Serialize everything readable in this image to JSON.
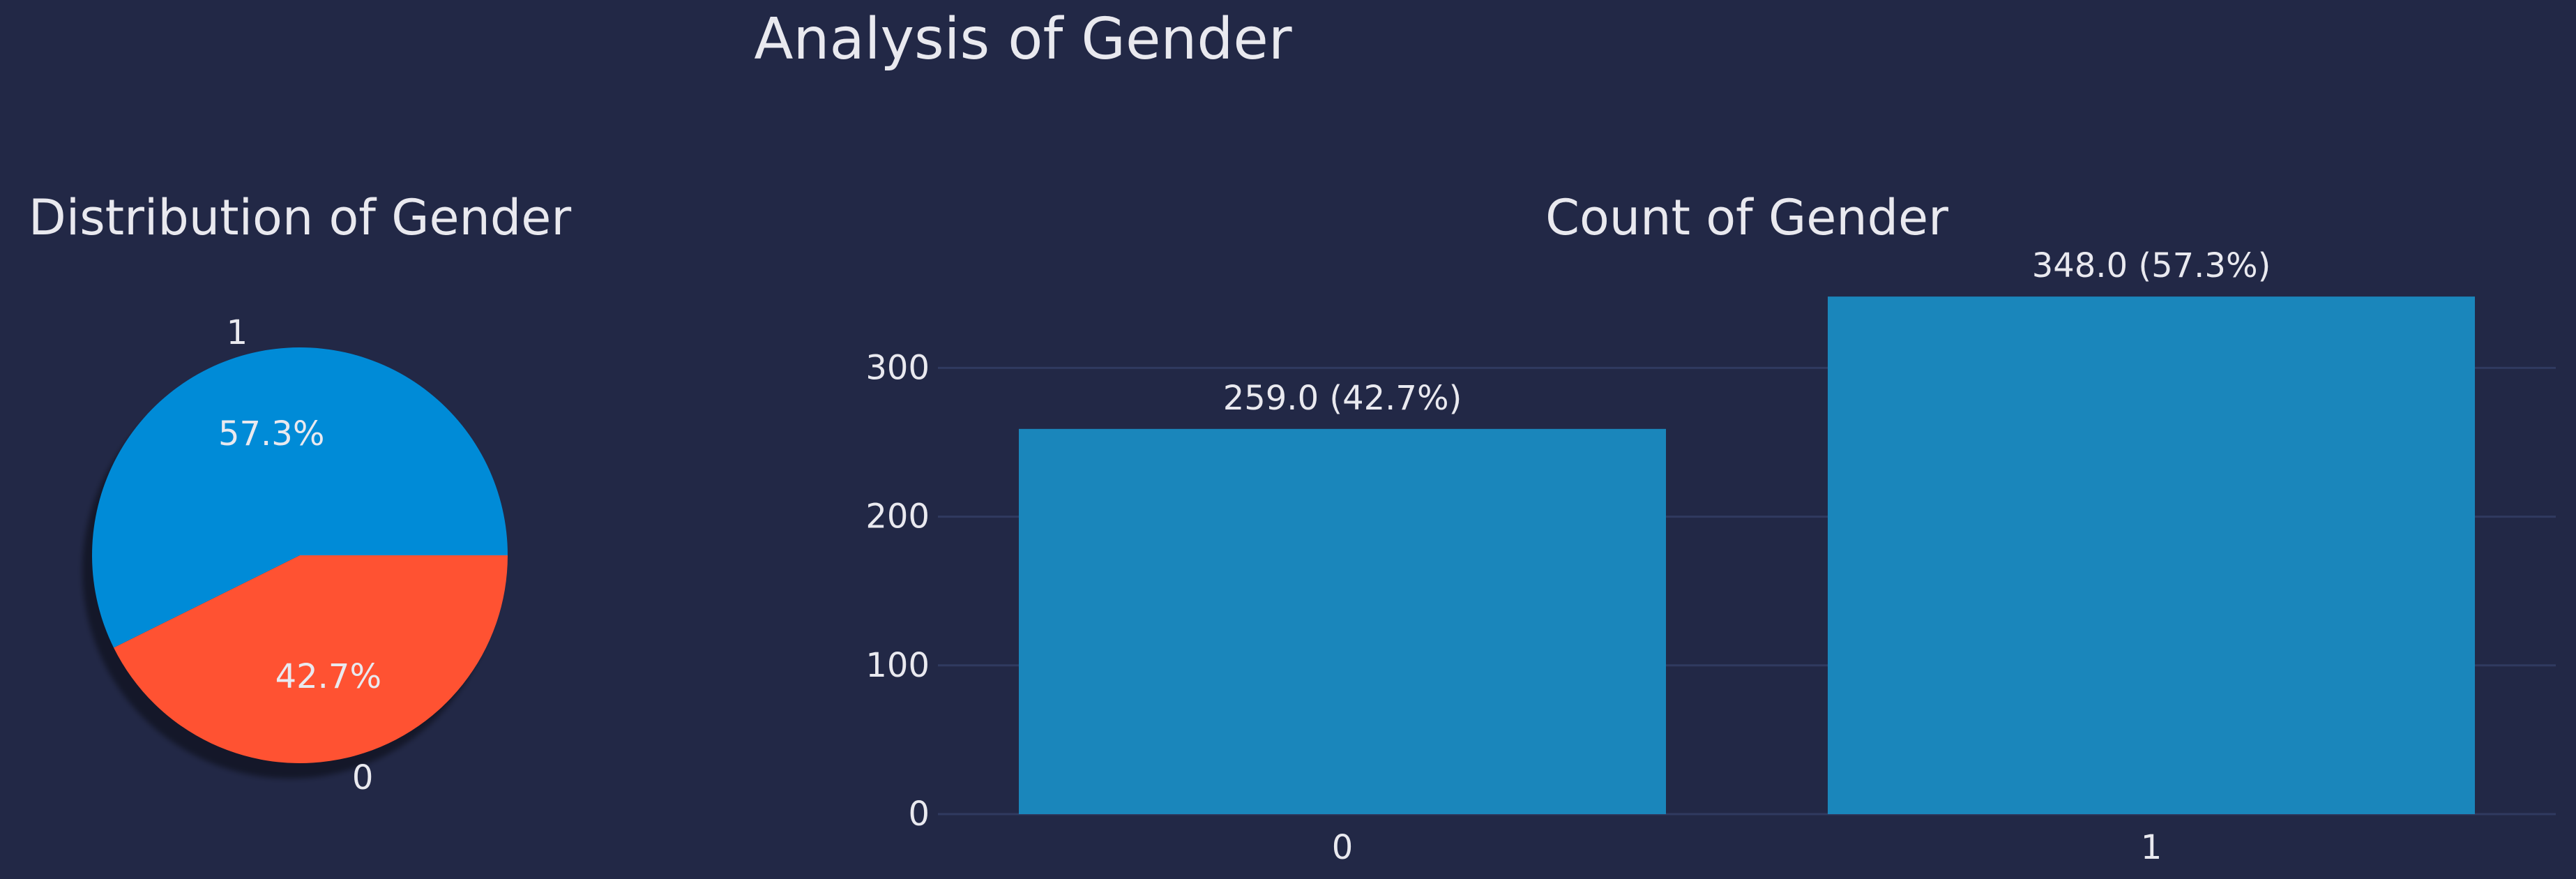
{
  "figure": {
    "title": "Analysis of Gender",
    "background": "#222846",
    "text_color": "#e9e9ef",
    "grid_color": "#303a60"
  },
  "chart_data": [
    {
      "type": "pie",
      "title": "Distribution of Gender",
      "labels": [
        "1",
        "0"
      ],
      "values": [
        348,
        259
      ],
      "percent_labels": [
        "57.3%",
        "42.7%"
      ],
      "colors": [
        "#008bd7",
        "#ff5232"
      ],
      "shadow": true,
      "start_angle_deg": 0
    },
    {
      "type": "bar",
      "title": "Count of Gender",
      "categories": [
        "0",
        "1"
      ],
      "values": [
        259,
        348
      ],
      "data_labels": [
        "259.0 (42.7%)",
        "348.0 (57.3%)"
      ],
      "bar_color": "#1a86bb",
      "xlabel": "",
      "ylabel": "",
      "ylim": [
        0,
        365.4
      ],
      "yticks": [
        0,
        100,
        200,
        300
      ],
      "grid": true
    }
  ]
}
